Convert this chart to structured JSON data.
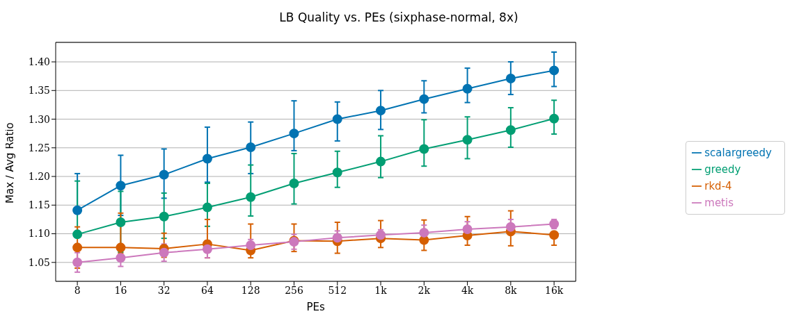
{
  "chart_data": {
    "type": "line",
    "title": "LB Quality vs. PEs (sixphase-normal, 8x)",
    "xlabel": "PEs",
    "ylabel": "Max / Avg Ratio",
    "categories": [
      "8",
      "16",
      "32",
      "64",
      "128",
      "256",
      "512",
      "1k",
      "2k",
      "4k",
      "8k",
      "16k"
    ],
    "ylim": [
      1.017,
      1.434
    ],
    "yticks": [
      1.05,
      {
        "value": 1.1,
        "label": "1.10"
      },
      1.15,
      {
        "value": 1.2,
        "label": "1.20"
      },
      1.25,
      {
        "value": 1.3,
        "label": "1.30"
      },
      1.35,
      {
        "value": 1.4,
        "label": "1.40"
      }
    ],
    "grid": "y",
    "legend": "right",
    "marker": "circle",
    "line_style": "solid",
    "series": [
      {
        "name": "scalargreedy",
        "color": "#0173b2",
        "values": [
          1.141,
          1.184,
          1.203,
          1.231,
          1.251,
          1.275,
          1.3,
          1.315,
          1.335,
          1.353,
          1.371,
          1.385
        ],
        "errors": [
          [
            1.141,
            1.205
          ],
          [
            1.132,
            1.237
          ],
          [
            1.162,
            1.248
          ],
          [
            1.19,
            1.286
          ],
          [
            1.205,
            1.295
          ],
          [
            1.245,
            1.332
          ],
          [
            1.262,
            1.33
          ],
          [
            1.282,
            1.35
          ],
          [
            1.311,
            1.367
          ],
          [
            1.329,
            1.389
          ],
          [
            1.343,
            1.4
          ],
          [
            1.357,
            1.417
          ]
        ]
      },
      {
        "name": "greedy",
        "color": "#029e73",
        "values": [
          1.099,
          1.12,
          1.13,
          1.146,
          1.164,
          1.188,
          1.207,
          1.226,
          1.248,
          1.264,
          1.281,
          1.301
        ],
        "errors": [
          [
            1.099,
            1.192
          ],
          [
            1.068,
            1.174
          ],
          [
            1.092,
            1.171
          ],
          [
            1.113,
            1.188
          ],
          [
            1.131,
            1.22
          ],
          [
            1.152,
            1.24
          ],
          [
            1.181,
            1.244
          ],
          [
            1.198,
            1.271
          ],
          [
            1.218,
            1.299
          ],
          [
            1.231,
            1.304
          ],
          [
            1.251,
            1.32
          ],
          [
            1.274,
            1.333
          ]
        ]
      },
      {
        "name": "rkd-4",
        "color": "#d55e00",
        "values": [
          1.076,
          1.076,
          1.074,
          1.082,
          1.071,
          1.088,
          1.087,
          1.092,
          1.089,
          1.097,
          1.104,
          1.098
        ],
        "errors": [
          [
            1.04,
            1.112
          ],
          [
            1.066,
            1.136
          ],
          [
            1.059,
            1.101
          ],
          [
            1.058,
            1.125
          ],
          [
            1.058,
            1.117
          ],
          [
            1.069,
            1.117
          ],
          [
            1.066,
            1.12
          ],
          [
            1.076,
            1.123
          ],
          [
            1.071,
            1.124
          ],
          [
            1.08,
            1.13
          ],
          [
            1.079,
            1.14
          ],
          [
            1.08,
            1.098
          ]
        ]
      },
      {
        "name": "metis",
        "color": "#cc78bc",
        "values": [
          1.05,
          1.058,
          1.067,
          1.073,
          1.08,
          1.086,
          1.093,
          1.098,
          1.102,
          1.108,
          1.112,
          1.117
        ],
        "errors": [
          [
            1.033,
            1.067
          ],
          [
            1.043,
            1.058
          ],
          [
            1.052,
            1.082
          ],
          [
            1.058,
            1.088
          ],
          [
            1.07,
            1.09
          ],
          [
            1.073,
            1.099
          ],
          [
            1.081,
            1.105
          ],
          [
            1.089,
            1.107
          ],
          [
            1.102,
            1.115
          ],
          [
            1.108,
            1.121
          ],
          [
            1.099,
            1.125
          ],
          [
            1.109,
            1.125
          ]
        ]
      }
    ]
  }
}
